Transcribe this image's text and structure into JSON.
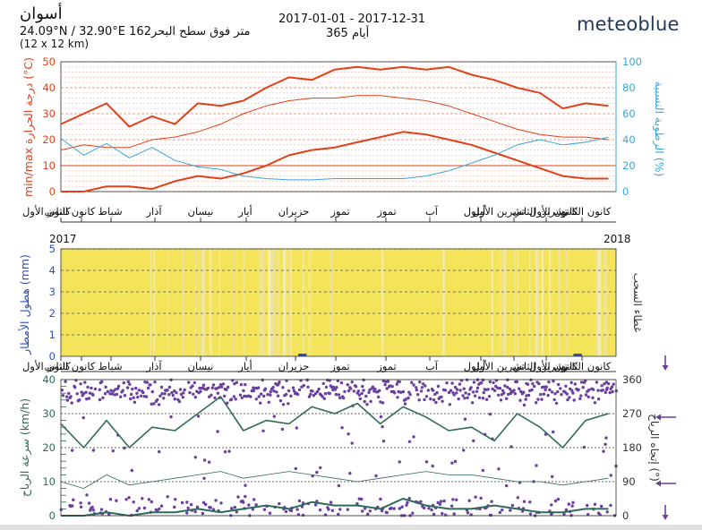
{
  "header": {
    "place": "أسوان",
    "coords_text": "24.09°N / 32.90°E",
    "elevation_text": "162متر فوق سطح البحر",
    "grid_text": "(12 x 12 km)",
    "date_range": "2017-01-01 - 2017-12-31",
    "days_text": "365 أيام",
    "logo": "meteoblue"
  },
  "months": [
    "كانون الأول",
    "كانون الثاني",
    "شباط",
    "آذار",
    "نيسان",
    "أيار",
    "حزيران",
    "تموز",
    "تموز",
    "آب",
    "أيلول",
    "تشرين الأول",
    "تشرين الثاني",
    "كانون الأول",
    "كانون الثاني"
  ],
  "colors": {
    "temp": "#e0401a",
    "humidity": "#3aa6d8",
    "cloud": "#f4e45a",
    "precip": "#2d4fc0",
    "wind_speed": "#2f6a5a",
    "wind_dir": "#6a3fa0"
  },
  "chart_data": [
    {
      "type": "line",
      "panel": "temperature-humidity",
      "ylabel": "min/max درجة الحرارة (°C)",
      "y2label": "الرطوبة النسبية (%)",
      "ylim": [
        0,
        50
      ],
      "y2lim": [
        0,
        100
      ],
      "yticks": [
        0,
        10,
        20,
        30,
        40,
        50
      ],
      "y2ticks": [
        0,
        20,
        40,
        60,
        80,
        100
      ],
      "x": [
        0,
        15,
        30,
        45,
        60,
        75,
        90,
        105,
        120,
        135,
        150,
        165,
        180,
        195,
        210,
        225,
        240,
        255,
        270,
        285,
        300,
        315,
        330,
        345,
        360
      ],
      "series": [
        {
          "values": [
            26,
            30,
            34,
            25,
            29,
            26,
            34,
            33,
            35,
            40,
            44,
            43,
            47,
            48,
            47,
            48,
            47,
            48,
            45,
            43,
            40,
            38,
            32,
            34,
            33
          ]
        },
        {
          "values": [
            16,
            18,
            17,
            17,
            20,
            21,
            23,
            26,
            30,
            33,
            35,
            36,
            36,
            37,
            37,
            36,
            35,
            33,
            30,
            27,
            24,
            22,
            21,
            21,
            20
          ]
        },
        {
          "values": [
            0,
            0,
            2,
            2,
            1,
            4,
            6,
            5,
            7,
            10,
            14,
            16,
            17,
            19,
            21,
            23,
            22,
            20,
            18,
            15,
            12,
            9,
            6,
            5,
            5
          ]
        },
        {
          "axis": "right",
          "values": [
            41,
            28,
            37,
            26,
            34,
            24,
            19,
            17,
            12,
            10,
            9,
            9,
            10,
            10,
            10,
            10,
            12,
            16,
            22,
            28,
            36,
            40,
            36,
            38,
            42
          ]
        }
      ]
    },
    {
      "type": "bar",
      "panel": "precipitation-cloud",
      "ylabel": "هطول الأمطار (mm)",
      "y2label": "غطاء السحب",
      "ylim": [
        0,
        5
      ],
      "yticks": [
        0,
        1,
        2,
        3,
        4,
        5
      ],
      "year_labels": [
        "2017",
        "2018"
      ],
      "cloud_fraction": [
        0.08,
        0.05,
        0.1,
        0.06,
        0.12,
        0.2,
        0.35,
        0.25,
        0.3,
        0.45,
        0.3,
        0.15,
        0.1,
        0.05,
        0.03,
        0.02,
        0.03,
        0.05,
        0.06,
        0.1,
        0.15,
        0.3,
        0.1,
        0.25
      ],
      "precip_days": [
        [
          156,
          158,
          0.15
        ],
        [
          337,
          339,
          0.15
        ]
      ]
    },
    {
      "type": "scatter",
      "panel": "wind",
      "ylabel": "سرعة الرياح (km/h)",
      "y2label": "إتجاه الرياح (°)",
      "ylim": [
        0,
        40
      ],
      "y2lim": [
        0,
        360
      ],
      "yticks": [
        0,
        10,
        20,
        30,
        40
      ],
      "y2ticks": [
        0,
        90,
        180,
        270,
        360
      ],
      "x": [
        0,
        15,
        30,
        45,
        60,
        75,
        90,
        105,
        120,
        135,
        150,
        165,
        180,
        195,
        210,
        225,
        240,
        255,
        270,
        285,
        300,
        315,
        330,
        345,
        360
      ],
      "series": [
        {
          "values": [
            27,
            20,
            28,
            20,
            26,
            25,
            30,
            35,
            25,
            28,
            27,
            32,
            30,
            33,
            27,
            32,
            29,
            25,
            26,
            22,
            30,
            26,
            20,
            28,
            30
          ]
        },
        {
          "values": [
            10,
            8,
            12,
            9,
            10,
            11,
            12,
            13,
            11,
            12,
            13,
            12,
            11,
            10,
            11,
            12,
            13,
            12,
            12,
            11,
            10,
            10,
            9,
            10,
            11
          ]
        },
        {
          "values": [
            0,
            0,
            1,
            0,
            1,
            1,
            2,
            1,
            2,
            3,
            2,
            4,
            3,
            3,
            2,
            5,
            3,
            2,
            2,
            3,
            2,
            1,
            1,
            2,
            2
          ]
        }
      ],
      "direction_bands": [
        {
          "center": 330,
          "spread": 40,
          "density": 0.9
        },
        {
          "center": 20,
          "spread": 35,
          "density": 0.35
        },
        {
          "center": 180,
          "spread": 140,
          "density": 0.12
        }
      ]
    }
  ]
}
